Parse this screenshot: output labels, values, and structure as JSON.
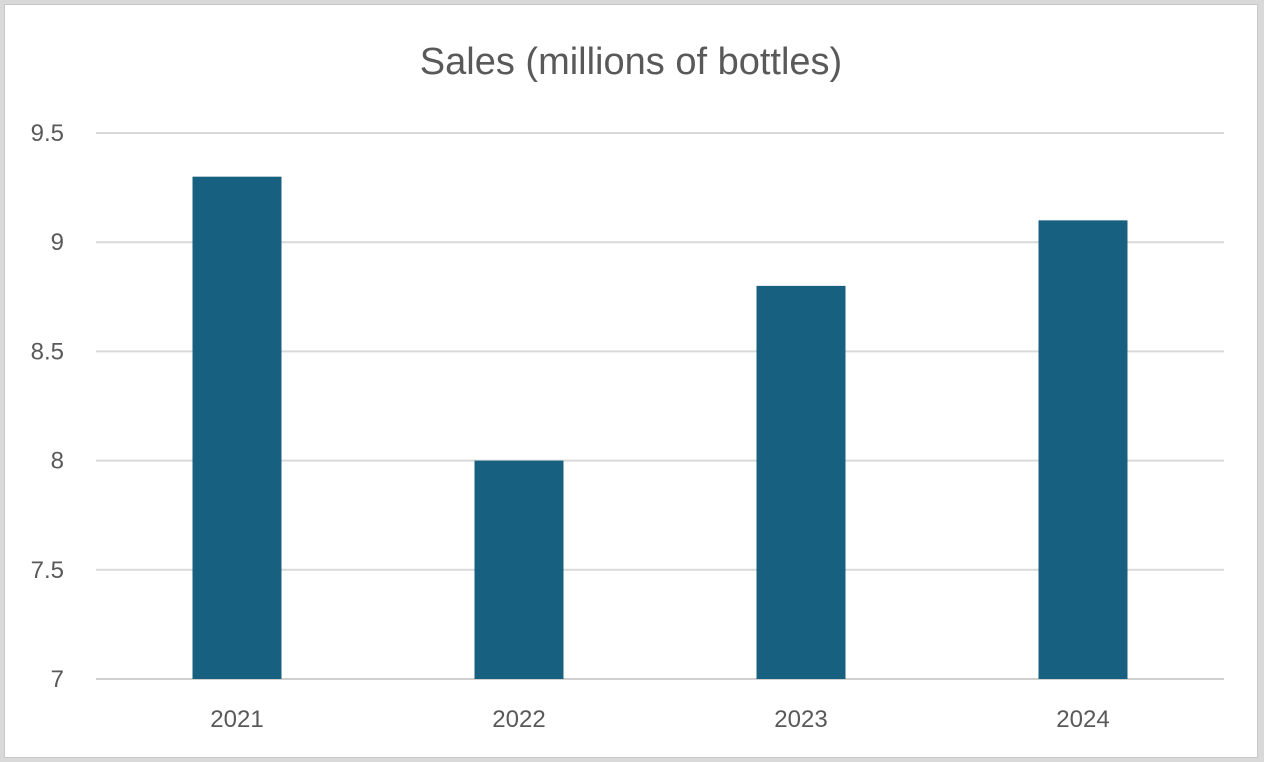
{
  "chart_data": {
    "type": "bar",
    "title": "Sales (millions of bottles)",
    "xlabel": "",
    "ylabel": "",
    "categories": [
      "2021",
      "2022",
      "2023",
      "2024"
    ],
    "values": [
      9.3,
      8.0,
      8.8,
      9.1
    ],
    "ylim": [
      7,
      9.5
    ],
    "yticks": [
      7,
      7.5,
      8,
      8.5,
      9,
      9.5
    ],
    "ytick_labels": [
      "7",
      "7.5",
      "8",
      "8.5",
      "9",
      "9.5"
    ],
    "grid": true,
    "legend": "none",
    "bar_color": "#17607F"
  }
}
